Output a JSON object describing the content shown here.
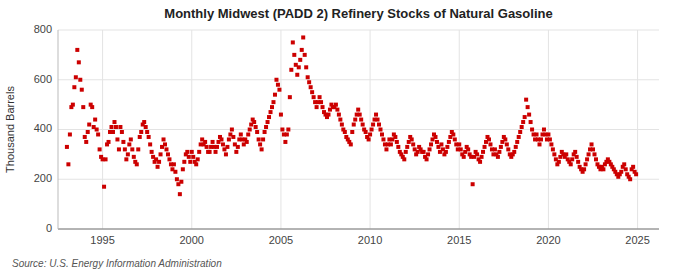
{
  "chart_data": {
    "type": "scatter",
    "title": "Monthly Midwest (PADD 2) Refinery Stocks of Natural Gasoline",
    "ylabel": "Thousand Barrels",
    "source": "Source: U.S. Energy Information Administration",
    "color": "#CC0000",
    "marker": "square",
    "grid": true,
    "xlim": [
      1992.5,
      2026.2
    ],
    "ylim": [
      0,
      800
    ],
    "xticks": [
      1995,
      2000,
      2005,
      2010,
      2015,
      2020,
      2025
    ],
    "yticks": [
      0,
      200,
      400,
      600,
      800
    ],
    "x": [
      1993.0,
      1993.083,
      1993.167,
      1993.25,
      1993.333,
      1993.417,
      1993.5,
      1993.583,
      1993.667,
      1993.75,
      1993.833,
      1993.917,
      1994.0,
      1994.083,
      1994.167,
      1994.25,
      1994.333,
      1994.417,
      1994.5,
      1994.583,
      1994.667,
      1994.75,
      1994.833,
      1994.917,
      1995.0,
      1995.083,
      1995.167,
      1995.25,
      1995.333,
      1995.417,
      1995.5,
      1995.583,
      1995.667,
      1995.75,
      1995.833,
      1995.917,
      1996.0,
      1996.083,
      1996.167,
      1996.25,
      1996.333,
      1996.417,
      1996.5,
      1996.583,
      1996.667,
      1996.75,
      1996.833,
      1996.917,
      1997.0,
      1997.083,
      1997.167,
      1997.25,
      1997.333,
      1997.417,
      1997.5,
      1997.583,
      1997.667,
      1997.75,
      1997.833,
      1997.917,
      1998.0,
      1998.083,
      1998.167,
      1998.25,
      1998.333,
      1998.417,
      1998.5,
      1998.583,
      1998.667,
      1998.75,
      1998.833,
      1998.917,
      1999.0,
      1999.083,
      1999.167,
      1999.25,
      1999.333,
      1999.417,
      1999.5,
      1999.583,
      1999.667,
      1999.75,
      1999.833,
      1999.917,
      2000.0,
      2000.083,
      2000.167,
      2000.25,
      2000.333,
      2000.417,
      2000.5,
      2000.583,
      2000.667,
      2000.75,
      2000.833,
      2000.917,
      2001.0,
      2001.083,
      2001.167,
      2001.25,
      2001.333,
      2001.417,
      2001.5,
      2001.583,
      2001.667,
      2001.75,
      2001.833,
      2001.917,
      2002.0,
      2002.083,
      2002.167,
      2002.25,
      2002.333,
      2002.417,
      2002.5,
      2002.583,
      2002.667,
      2002.75,
      2002.833,
      2002.917,
      2003.0,
      2003.083,
      2003.167,
      2003.25,
      2003.333,
      2003.417,
      2003.5,
      2003.583,
      2003.667,
      2003.75,
      2003.833,
      2003.917,
      2004.0,
      2004.083,
      2004.167,
      2004.25,
      2004.333,
      2004.417,
      2004.5,
      2004.583,
      2004.667,
      2004.75,
      2004.833,
      2004.917,
      2005.0,
      2005.083,
      2005.167,
      2005.25,
      2005.333,
      2005.417,
      2005.5,
      2005.583,
      2005.667,
      2005.75,
      2005.833,
      2005.917,
      2006.0,
      2006.083,
      2006.167,
      2006.25,
      2006.333,
      2006.417,
      2006.5,
      2006.583,
      2006.667,
      2006.75,
      2006.833,
      2006.917,
      2007.0,
      2007.083,
      2007.167,
      2007.25,
      2007.333,
      2007.417,
      2007.5,
      2007.583,
      2007.667,
      2007.75,
      2007.833,
      2007.917,
      2008.0,
      2008.083,
      2008.167,
      2008.25,
      2008.333,
      2008.417,
      2008.5,
      2008.583,
      2008.667,
      2008.75,
      2008.833,
      2008.917,
      2009.0,
      2009.083,
      2009.167,
      2009.25,
      2009.333,
      2009.417,
      2009.5,
      2009.583,
      2009.667,
      2009.75,
      2009.833,
      2009.917,
      2010.0,
      2010.083,
      2010.167,
      2010.25,
      2010.333,
      2010.417,
      2010.5,
      2010.583,
      2010.667,
      2010.75,
      2010.833,
      2010.917,
      2011.0,
      2011.083,
      2011.167,
      2011.25,
      2011.333,
      2011.417,
      2011.5,
      2011.583,
      2011.667,
      2011.75,
      2011.833,
      2011.917,
      2012.0,
      2012.083,
      2012.167,
      2012.25,
      2012.333,
      2012.417,
      2012.5,
      2012.583,
      2012.667,
      2012.75,
      2012.833,
      2012.917,
      2013.0,
      2013.083,
      2013.167,
      2013.25,
      2013.333,
      2013.417,
      2013.5,
      2013.583,
      2013.667,
      2013.75,
      2013.833,
      2013.917,
      2014.0,
      2014.083,
      2014.167,
      2014.25,
      2014.333,
      2014.417,
      2014.5,
      2014.583,
      2014.667,
      2014.75,
      2014.833,
      2014.917,
      2015.0,
      2015.083,
      2015.167,
      2015.25,
      2015.333,
      2015.417,
      2015.5,
      2015.583,
      2015.667,
      2015.75,
      2015.833,
      2015.917,
      2016.0,
      2016.083,
      2016.167,
      2016.25,
      2016.333,
      2016.417,
      2016.5,
      2016.583,
      2016.667,
      2016.75,
      2016.833,
      2016.917,
      2017.0,
      2017.083,
      2017.167,
      2017.25,
      2017.333,
      2017.417,
      2017.5,
      2017.583,
      2017.667,
      2017.75,
      2017.833,
      2017.917,
      2018.0,
      2018.083,
      2018.167,
      2018.25,
      2018.333,
      2018.417,
      2018.5,
      2018.583,
      2018.667,
      2018.75,
      2018.833,
      2018.917,
      2019.0,
      2019.083,
      2019.167,
      2019.25,
      2019.333,
      2019.417,
      2019.5,
      2019.583,
      2019.667,
      2019.75,
      2019.833,
      2019.917,
      2020.0,
      2020.083,
      2020.167,
      2020.25,
      2020.333,
      2020.417,
      2020.5,
      2020.583,
      2020.667,
      2020.75,
      2020.833,
      2020.917,
      2021.0,
      2021.083,
      2021.167,
      2021.25,
      2021.333,
      2021.417,
      2021.5,
      2021.583,
      2021.667,
      2021.75,
      2021.833,
      2021.917,
      2022.0,
      2022.083,
      2022.167,
      2022.25,
      2022.333,
      2022.417,
      2022.5,
      2022.583,
      2022.667,
      2022.75,
      2022.833,
      2022.917,
      2023.0,
      2023.083,
      2023.167,
      2023.25,
      2023.333,
      2023.417,
      2023.5,
      2023.583,
      2023.667,
      2023.75,
      2023.833,
      2023.917,
      2024.0,
      2024.083,
      2024.167,
      2024.25,
      2024.333,
      2024.417,
      2024.5,
      2024.583,
      2024.667,
      2024.75,
      2024.833,
      2024.917
    ],
    "values": [
      330,
      260,
      380,
      490,
      500,
      570,
      610,
      720,
      670,
      600,
      560,
      490,
      370,
      350,
      390,
      420,
      500,
      490,
      410,
      440,
      400,
      380,
      320,
      290,
      280,
      170,
      280,
      340,
      350,
      390,
      410,
      390,
      430,
      410,
      360,
      320,
      410,
      390,
      350,
      320,
      280,
      300,
      340,
      360,
      320,
      290,
      270,
      260,
      320,
      370,
      390,
      420,
      430,
      410,
      390,
      370,
      340,
      310,
      290,
      270,
      280,
      250,
      270,
      300,
      330,
      360,
      340,
      320,
      300,
      280,
      260,
      240,
      260,
      230,
      200,
      180,
      140,
      190,
      240,
      270,
      300,
      310,
      290,
      270,
      310,
      290,
      270,
      260,
      280,
      310,
      340,
      360,
      340,
      350,
      330,
      310,
      310,
      330,
      350,
      330,
      310,
      330,
      350,
      370,
      360,
      340,
      320,
      300,
      330,
      360,
      380,
      400,
      370,
      340,
      310,
      330,
      360,
      380,
      360,
      340,
      360,
      350,
      380,
      400,
      420,
      440,
      430,
      410,
      390,
      360,
      340,
      320,
      360,
      390,
      410,
      430,
      450,
      470,
      490,
      510,
      540,
      600,
      580,
      560,
      460,
      400,
      380,
      350,
      380,
      400,
      530,
      640,
      750,
      700,
      660,
      620,
      650,
      680,
      720,
      770,
      700,
      650,
      610,
      590,
      570,
      550,
      530,
      510,
      490,
      510,
      530,
      510,
      490,
      470,
      460,
      450,
      460,
      480,
      500,
      490,
      490,
      500,
      480,
      460,
      440,
      420,
      400,
      390,
      370,
      360,
      350,
      340,
      390,
      420,
      440,
      460,
      480,
      460,
      440,
      420,
      400,
      390,
      370,
      360,
      380,
      400,
      420,
      440,
      460,
      440,
      420,
      400,
      380,
      360,
      340,
      320,
      340,
      360,
      340,
      360,
      380,
      370,
      350,
      330,
      310,
      300,
      290,
      280,
      310,
      330,
      350,
      370,
      360,
      340,
      320,
      300,
      310,
      330,
      320,
      310,
      310,
      290,
      280,
      300,
      320,
      340,
      360,
      380,
      370,
      350,
      330,
      310,
      340,
      320,
      300,
      310,
      330,
      350,
      370,
      390,
      380,
      360,
      340,
      320,
      340,
      320,
      300,
      290,
      310,
      330,
      320,
      300,
      290,
      180,
      290,
      310,
      300,
      280,
      270,
      290,
      310,
      330,
      350,
      370,
      360,
      340,
      320,
      300,
      320,
      300,
      290,
      310,
      330,
      350,
      370,
      360,
      340,
      320,
      300,
      290,
      300,
      310,
      330,
      350,
      370,
      390,
      410,
      430,
      450,
      520,
      490,
      460,
      430,
      400,
      380,
      360,
      380,
      360,
      340,
      360,
      380,
      400,
      380,
      360,
      380,
      360,
      340,
      320,
      300,
      280,
      260,
      270,
      290,
      310,
      300,
      290,
      300,
      280,
      270,
      260,
      280,
      300,
      310,
      290,
      270,
      250,
      240,
      230,
      240,
      260,
      280,
      300,
      320,
      340,
      320,
      300,
      280,
      260,
      250,
      240,
      250,
      240,
      260,
      270,
      280,
      270,
      260,
      250,
      240,
      230,
      220,
      210,
      220,
      230,
      250,
      260,
      240,
      220,
      210,
      200,
      240,
      250,
      230,
      220
    ]
  }
}
